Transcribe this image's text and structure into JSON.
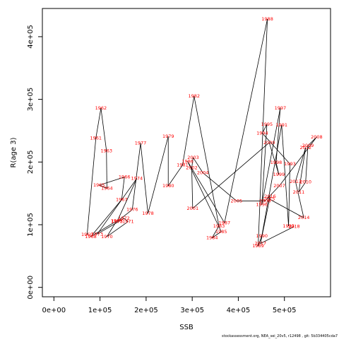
{
  "chart_data": {
    "type": "line",
    "xlabel": "SSB",
    "ylabel": "R(age 3)",
    "xlim": [
      -25000,
      600000
    ],
    "ylim": [
      -15000,
      445000
    ],
    "x_ticks": [
      0,
      100000,
      200000,
      300000,
      400000,
      500000
    ],
    "x_tick_labels": [
      "0e+00",
      "1e+05",
      "2e+05",
      "3e+05",
      "4e+05",
      "5e+05"
    ],
    "y_ticks": [
      0,
      100000,
      200000,
      300000,
      400000
    ],
    "y_tick_labels": [
      "0e+00",
      "1e+05",
      "2e+05",
      "3e+05",
      "4e+05"
    ],
    "grid": false,
    "line_color": "#000000",
    "label_color": "#ff0000",
    "points": [
      {
        "year": "1960",
        "x": 72000,
        "y": 84000
      },
      {
        "year": "1961",
        "x": 91000,
        "y": 238000
      },
      {
        "year": "1962",
        "x": 102000,
        "y": 286000
      },
      {
        "year": "1963",
        "x": 114000,
        "y": 218000
      },
      {
        "year": "1964",
        "x": 115000,
        "y": 158000
      },
      {
        "year": "1965",
        "x": 98000,
        "y": 163000
      },
      {
        "year": "1966",
        "x": 153000,
        "y": 176000
      },
      {
        "year": "1967",
        "x": 147000,
        "y": 140000
      },
      {
        "year": "1968",
        "x": 80000,
        "y": 81000
      },
      {
        "year": "1969",
        "x": 136000,
        "y": 106000
      },
      {
        "year": "1970",
        "x": 115000,
        "y": 81000
      },
      {
        "year": "1971",
        "x": 161000,
        "y": 105000
      },
      {
        "year": "1972",
        "x": 152000,
        "y": 110000
      },
      {
        "year": "1973",
        "x": 94000,
        "y": 85000
      },
      {
        "year": "1974",
        "x": 180000,
        "y": 174000
      },
      {
        "year": "1975",
        "x": 137000,
        "y": 105000
      },
      {
        "year": "1976",
        "x": 170000,
        "y": 124000
      },
      {
        "year": "1977",
        "x": 188000,
        "y": 230000
      },
      {
        "year": "1978",
        "x": 204000,
        "y": 118000
      },
      {
        "year": "1979",
        "x": 248000,
        "y": 241000
      },
      {
        "year": "1980",
        "x": 248000,
        "y": 162000
      },
      {
        "year": "1981",
        "x": 279000,
        "y": 195000
      },
      {
        "year": "1982",
        "x": 304000,
        "y": 305000
      },
      {
        "year": "1983",
        "x": 358000,
        "y": 98000
      },
      {
        "year": "1984",
        "x": 343000,
        "y": 79000
      },
      {
        "year": "1985",
        "x": 363000,
        "y": 89000
      },
      {
        "year": "1986",
        "x": 290000,
        "y": 201000
      },
      {
        "year": "1987",
        "x": 370000,
        "y": 103000
      },
      {
        "year": "1988",
        "x": 463000,
        "y": 428000
      },
      {
        "year": "1989",
        "x": 443000,
        "y": 66000
      },
      {
        "year": "1990",
        "x": 451000,
        "y": 82000
      },
      {
        "year": "1991",
        "x": 494000,
        "y": 259000
      },
      {
        "year": "1992",
        "x": 509000,
        "y": 98000
      },
      {
        "year": "1993",
        "x": 512000,
        "y": 197000
      },
      {
        "year": "1994",
        "x": 452000,
        "y": 246000
      },
      {
        "year": "1995",
        "x": 462000,
        "y": 260000
      },
      {
        "year": "1996",
        "x": 451000,
        "y": 132000
      },
      {
        "year": "1997",
        "x": 491000,
        "y": 286000
      },
      {
        "year": "1998",
        "x": 482000,
        "y": 199000
      },
      {
        "year": "1999",
        "x": 488000,
        "y": 180000
      },
      {
        "year": "2000",
        "x": 467000,
        "y": 231000
      },
      {
        "year": "2001",
        "x": 301000,
        "y": 126000
      },
      {
        "year": "2002",
        "x": 299000,
        "y": 191000
      },
      {
        "year": "2003",
        "x": 302000,
        "y": 207000
      },
      {
        "year": "2004",
        "x": 323000,
        "y": 183000
      },
      {
        "year": "2005",
        "x": 396000,
        "y": 138000
      },
      {
        "year": "2006",
        "x": 458000,
        "y": 138000
      },
      {
        "year": "2007",
        "x": 489000,
        "y": 162000
      },
      {
        "year": "2008",
        "x": 570000,
        "y": 240000
      },
      {
        "year": "2009",
        "x": 551000,
        "y": 226000
      },
      {
        "year": "2010",
        "x": 546000,
        "y": 168000
      },
      {
        "year": "2011",
        "x": 531000,
        "y": 152000
      },
      {
        "year": "2012",
        "x": 546000,
        "y": 223000
      },
      {
        "year": "2013",
        "x": 524000,
        "y": 169000
      },
      {
        "year": "2014",
        "x": 542000,
        "y": 111000
      },
      {
        "year": "2015",
        "x": 467000,
        "y": 141000
      },
      {
        "year": "2016",
        "x": 469000,
        "y": 145000
      },
      {
        "year": "2017",
        "x": 448000,
        "y": 70000
      },
      {
        "year": "2018",
        "x": 521000,
        "y": 97000
      }
    ]
  },
  "footer_text": "stockassessment.org, NEA_sei_20v5, r12498 , git: 5b334405cda7"
}
